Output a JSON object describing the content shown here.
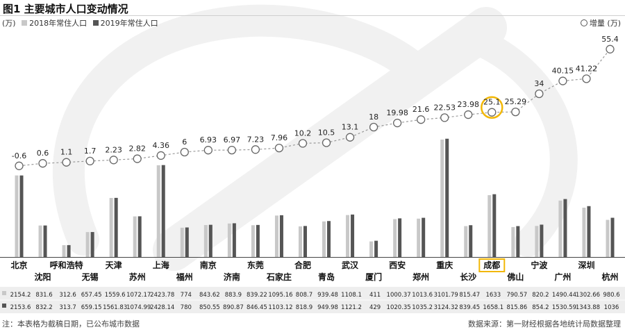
{
  "header": {
    "title": "图1 主要城市人口变动情况",
    "unit": "(万)",
    "legend_2018": "2018年常住人口",
    "legend_2019": "2019年常住人口",
    "legend_increase": "增量 (万)"
  },
  "colors": {
    "bar_2018": "#c8c8c8",
    "bar_2019": "#555555",
    "line": "#999999",
    "highlight": "#f2b705",
    "watermark": "#f1f1f1",
    "table_bg": "#eeeeee"
  },
  "footer": {
    "note": "注：本表格为截稿日期，已公布城市数据",
    "source": "数据来源：第一财经根据各地统计局数据整理"
  },
  "chart_data": {
    "type": "bar",
    "highlight_category": "成都",
    "categories": [
      "北京",
      "沈阳",
      "呼和浩特",
      "无锡",
      "天津",
      "苏州",
      "上海",
      "福州",
      "南京",
      "济南",
      "东莞",
      "石家庄",
      "合肥",
      "青岛",
      "武汉",
      "厦门",
      "西安",
      "郑州",
      "重庆",
      "长沙",
      "成都",
      "佛山",
      "宁波",
      "广州",
      "深圳",
      "杭州"
    ],
    "series": [
      {
        "name": "2018年常住人口",
        "type": "bar",
        "values": [
          2154.2,
          831.6,
          312.6,
          657.45,
          1559.6,
          1072.17,
          2423.78,
          774,
          843.62,
          883.9,
          839.22,
          1095.16,
          808.7,
          939.48,
          1108.1,
          411,
          1000.37,
          1013.6,
          3101.79,
          815.47,
          1633,
          790.57,
          820.2,
          1490.44,
          1302.66,
          980.6
        ]
      },
      {
        "name": "2019年常住人口",
        "type": "bar",
        "values": [
          2153.6,
          832.2,
          313.7,
          659.15,
          1561.83,
          1074.99,
          2428.14,
          780,
          850.55,
          890.87,
          846.45,
          1103.12,
          818.9,
          949.98,
          1121.2,
          429,
          1020.35,
          1035.2,
          3124.32,
          839.45,
          1658.1,
          815.86,
          854.2,
          1530.59,
          1343.88,
          1036
        ]
      },
      {
        "name": "增量 (万)",
        "type": "line",
        "labels": [
          "-0.6",
          "0.6",
          "1.1",
          "1.7",
          "2.23",
          "2.82",
          "4.36",
          "6",
          "6.93",
          "6.97",
          "7.23",
          "7.96",
          "10.2",
          "10.5",
          "13.1",
          "18",
          "19.98",
          "21.6",
          "22.53",
          "23.98",
          "25.1",
          "25.29",
          "34",
          "40.15",
          "41.22",
          "55.4"
        ],
        "values": [
          -0.6,
          0.6,
          1.1,
          1.7,
          2.23,
          2.82,
          4.36,
          6,
          6.93,
          6.97,
          7.23,
          7.96,
          10.2,
          10.5,
          13.1,
          18,
          19.98,
          21.6,
          22.53,
          23.98,
          25.1,
          25.29,
          34,
          40.15,
          41.22,
          55.4
        ]
      }
    ],
    "table_rows": [
      [
        "2154.2",
        "831.6",
        "312.6",
        "657.45",
        "1559.6",
        "1072.17",
        "2423.78",
        "774",
        "843.62",
        "883.9",
        "839.22",
        "1095.16",
        "808.7",
        "939.48",
        "1108.1",
        "411",
        "1000.37",
        "1013.6",
        "3101.79",
        "815.47",
        "1633",
        "790.57",
        "820.2",
        "1490.44",
        "1302.66",
        "980.6"
      ],
      [
        "2153.6",
        "832.2",
        "313.7",
        "659.15",
        "1561.83",
        "1074.99",
        "2428.14",
        "780",
        "850.55",
        "890.87",
        "846.45",
        "1103.12",
        "818.9",
        "949.98",
        "1121.2",
        "429",
        "1020.35",
        "1035.2",
        "3124.32",
        "839.45",
        "1658.1",
        "815.86",
        "854.2",
        "1530.59",
        "1343.88",
        "1036"
      ]
    ],
    "grid": false,
    "legend_position": "top"
  }
}
